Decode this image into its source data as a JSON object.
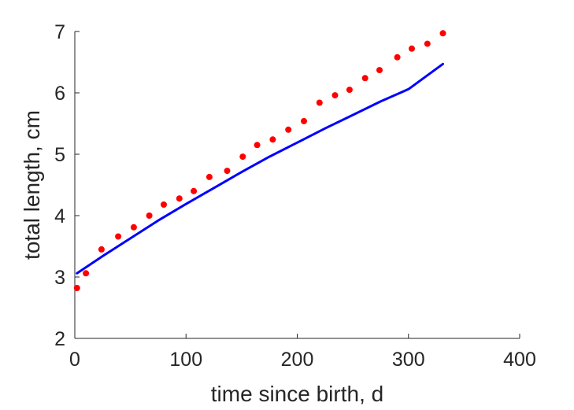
{
  "chart_data": {
    "type": "scatter",
    "title": "",
    "xlabel": "time since birth, d",
    "ylabel": "total length, cm",
    "xlim": [
      0,
      400
    ],
    "ylim": [
      2,
      7
    ],
    "xticks": [
      0,
      100,
      200,
      300,
      400
    ],
    "yticks": [
      2,
      3,
      4,
      5,
      6,
      7
    ],
    "xtick_labels": [
      "0",
      "100",
      "200",
      "300",
      "400"
    ],
    "ytick_labels": [
      "2",
      "3",
      "4",
      "5",
      "6",
      "7"
    ],
    "grid": false,
    "legend": "none",
    "series": [
      {
        "kind": "scatter",
        "color": "#ff0000",
        "x": [
          2,
          10,
          24,
          39,
          53,
          67,
          80,
          94,
          107,
          121,
          137,
          151,
          164,
          178,
          192,
          206,
          220,
          234,
          247,
          261,
          274,
          290,
          303,
          317,
          331
        ],
        "y": [
          2.82,
          3.06,
          3.45,
          3.66,
          3.81,
          4.0,
          4.18,
          4.28,
          4.4,
          4.63,
          4.73,
          4.96,
          5.15,
          5.24,
          5.4,
          5.54,
          5.84,
          5.96,
          6.05,
          6.24,
          6.37,
          6.58,
          6.72,
          6.8,
          6.97
        ]
      },
      {
        "kind": "line",
        "color": "#0000ff",
        "x": [
          2,
          25,
          50,
          75,
          100,
          125,
          150,
          175,
          200,
          225,
          250,
          275,
          300,
          331
        ],
        "y": [
          3.06,
          3.34,
          3.63,
          3.92,
          4.19,
          4.45,
          4.71,
          4.96,
          5.19,
          5.42,
          5.64,
          5.86,
          6.06,
          6.47
        ]
      }
    ]
  }
}
